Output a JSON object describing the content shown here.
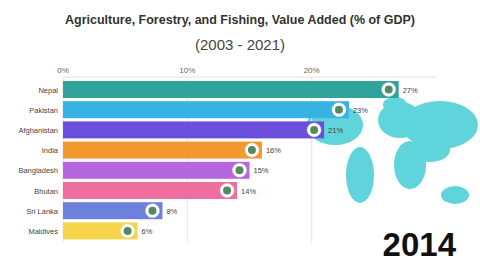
{
  "chart_data": {
    "type": "bar",
    "orientation": "horizontal",
    "title": "Agriculture, Forestry, and Fishing, Value Added (% of GDP)",
    "subtitle": "(2003 - 2021)",
    "annotations": [
      "2014"
    ],
    "categories": [
      "Nepal",
      "Pakistan",
      "Afghanistan",
      "India",
      "Bangladesh",
      "Bhutan",
      "Sri Lanka",
      "Maldives"
    ],
    "values": [
      27,
      23,
      21,
      16,
      15,
      14,
      8,
      6
    ],
    "value_labels": [
      "27%",
      "23%",
      "21%",
      "16%",
      "15%",
      "14%",
      "8%",
      "6%"
    ],
    "colors": [
      "#2fa39c",
      "#35b3e3",
      "#6a4fdc",
      "#f3992f",
      "#b566e0",
      "#ee6ea0",
      "#6d80da",
      "#f6d54a"
    ],
    "xlim": [
      0,
      30
    ],
    "xticks": [
      {
        "value": 0,
        "label": "0%"
      },
      {
        "value": 10,
        "label": "10%"
      },
      {
        "value": 20,
        "label": "20%"
      }
    ],
    "grid": true,
    "data_labels": true
  }
}
